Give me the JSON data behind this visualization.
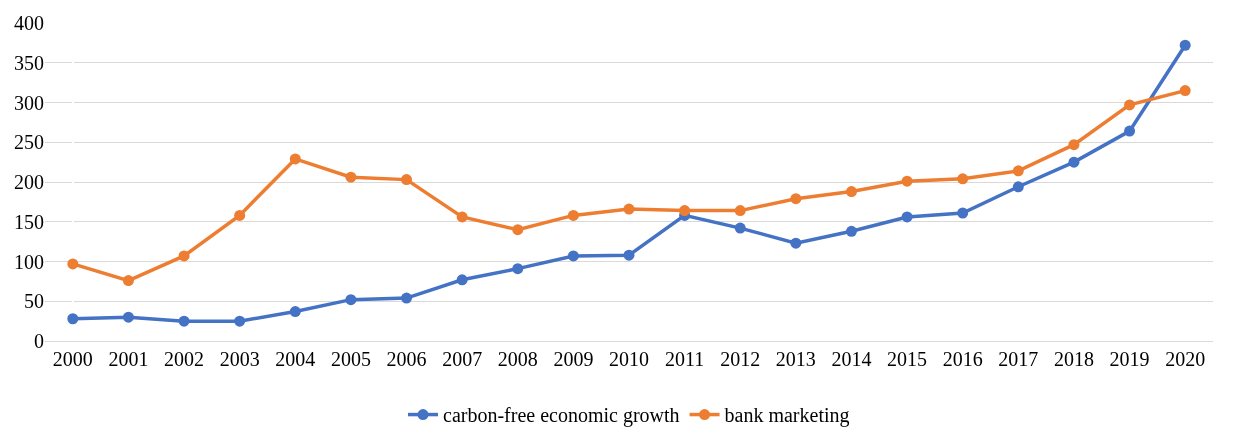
{
  "chart_data": {
    "type": "line",
    "categories": [
      "2000",
      "2001",
      "2002",
      "2003",
      "2004",
      "2005",
      "2006",
      "2007",
      "2008",
      "2009",
      "2010",
      "2011",
      "2012",
      "2013",
      "2014",
      "2015",
      "2016",
      "2017",
      "2018",
      "2019",
      "2020"
    ],
    "series": [
      {
        "name": "carbon-free economic growth",
        "color": "#4472c4",
        "values": [
          28,
          30,
          25,
          25,
          37,
          52,
          54,
          77,
          91,
          107,
          108,
          158,
          142,
          123,
          138,
          156,
          161,
          194,
          225,
          264,
          372
        ]
      },
      {
        "name": "bank marketing",
        "color": "#ed7d31",
        "values": [
          97,
          76,
          107,
          158,
          229,
          206,
          203,
          156,
          140,
          158,
          166,
          164,
          164,
          179,
          188,
          201,
          204,
          214,
          247,
          297,
          315
        ]
      }
    ],
    "ylim": [
      0,
      400
    ],
    "yticks": [
      0,
      50,
      100,
      150,
      200,
      250,
      300,
      350,
      400
    ],
    "grid": "y",
    "legend": "bottom",
    "marker": "circle",
    "line_style": "solid"
  }
}
